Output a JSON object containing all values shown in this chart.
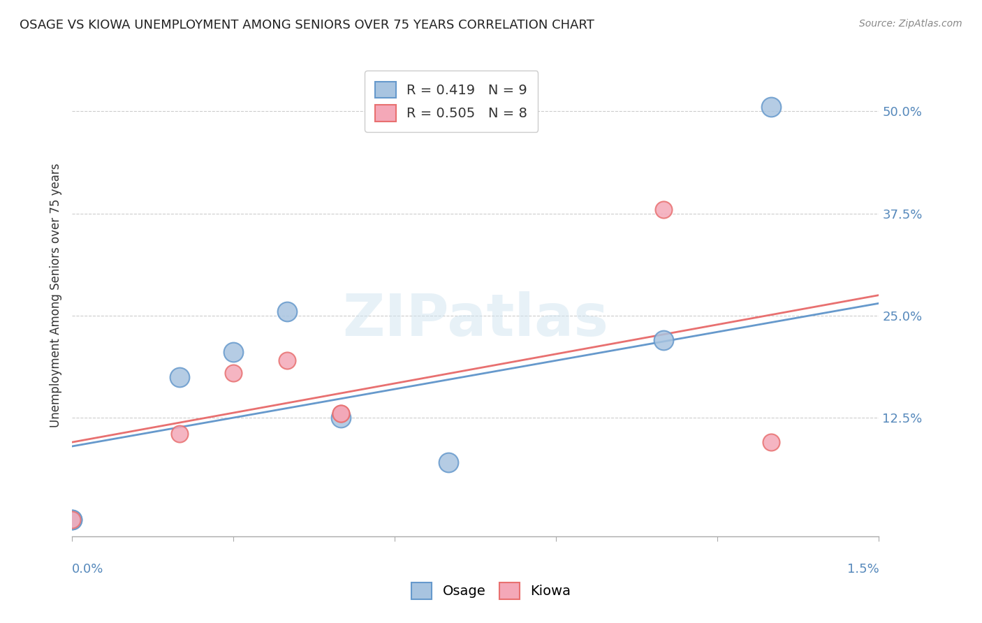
{
  "title": "OSAGE VS KIOWA UNEMPLOYMENT AMONG SENIORS OVER 75 YEARS CORRELATION CHART",
  "source": "Source: ZipAtlas.com",
  "ylabel": "Unemployment Among Seniors over 75 years",
  "legend_bottom": [
    "Osage",
    "Kiowa"
  ],
  "osage_R": 0.419,
  "osage_N": 9,
  "kiowa_R": 0.505,
  "kiowa_N": 8,
  "osage_color": "#a8c4e0",
  "kiowa_color": "#f4a8b8",
  "osage_line_color": "#6699cc",
  "kiowa_line_color": "#e87070",
  "ytick_labels": [
    "12.5%",
    "25.0%",
    "37.5%",
    "50.0%"
  ],
  "ytick_values": [
    0.125,
    0.25,
    0.375,
    0.5
  ],
  "xlim": [
    0.0,
    0.015
  ],
  "ylim": [
    -0.02,
    0.57
  ],
  "background_color": "#ffffff",
  "watermark_text": "ZIPatlas",
  "osage_x": [
    0.0,
    0.0,
    0.002,
    0.003,
    0.004,
    0.005,
    0.007,
    0.011,
    0.013
  ],
  "osage_y": [
    0.0,
    0.0,
    0.175,
    0.205,
    0.255,
    0.125,
    0.07,
    0.22,
    0.505
  ],
  "kiowa_x": [
    0.0,
    0.002,
    0.003,
    0.004,
    0.005,
    0.005,
    0.011,
    0.013
  ],
  "kiowa_y": [
    0.0,
    0.105,
    0.18,
    0.195,
    0.13,
    0.13,
    0.38,
    0.095
  ],
  "osage_trendline_x": [
    0.0,
    0.015
  ],
  "osage_trendline_y": [
    0.09,
    0.265
  ],
  "kiowa_trendline_x": [
    0.0,
    0.015
  ],
  "kiowa_trendline_y": [
    0.095,
    0.275
  ]
}
